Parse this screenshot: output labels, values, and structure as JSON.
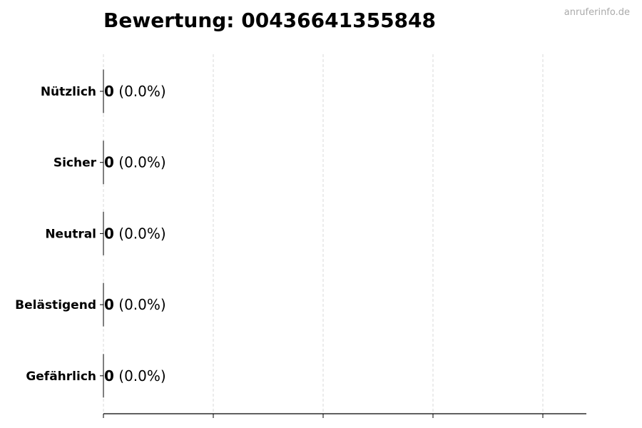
{
  "chart_data": {
    "type": "bar",
    "orientation": "horizontal",
    "title": "Bewertung: 00436641355848",
    "watermark": "anruferinfo.de",
    "categories": [
      "Nützlich",
      "Sicher",
      "Neutral",
      "Belästigend",
      "Gefährlich"
    ],
    "values": [
      0,
      0,
      0,
      0,
      0
    ],
    "value_labels": [
      "0",
      "0",
      "0",
      "0",
      "0"
    ],
    "percent_labels": [
      "(0.0%)",
      "(0.0%)",
      "(0.0%)",
      "(0.0%)",
      "(0.0%)"
    ],
    "xlabel": "",
    "ylabel": "",
    "grid": "x dashed",
    "colors": {
      "bar_edge": "#000000",
      "grid": "#d9d9d9"
    }
  }
}
